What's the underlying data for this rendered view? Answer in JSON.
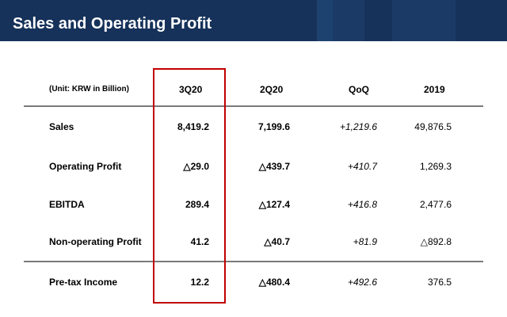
{
  "title": "Sales and Operating Profit",
  "colors": {
    "header_band": "#16325a",
    "highlight_box": "#c00000"
  },
  "table": {
    "unit": "(Unit: KRW in Billion)",
    "columns": [
      "3Q20",
      "2Q20",
      "QoQ",
      "2019"
    ],
    "rows": [
      {
        "label": "Sales",
        "values": [
          "8,419.2",
          "7,199.6",
          "+1,219.6",
          "49,876.5"
        ]
      },
      {
        "label": "Operating Profit",
        "values": [
          "△29.0",
          "△439.7",
          "+410.7",
          "1,269.3"
        ]
      },
      {
        "label": "EBITDA",
        "values": [
          "289.4",
          "△127.4",
          "+416.8",
          "2,477.6"
        ]
      },
      {
        "label": "Non-operating Profit",
        "values": [
          "41.2",
          "△40.7",
          "+81.9",
          "△892.8"
        ]
      },
      {
        "label": "Pre-tax Income",
        "values": [
          "12.2",
          "△480.4",
          "+492.6",
          "376.5"
        ]
      }
    ],
    "highlighted_column": "3Q20"
  }
}
